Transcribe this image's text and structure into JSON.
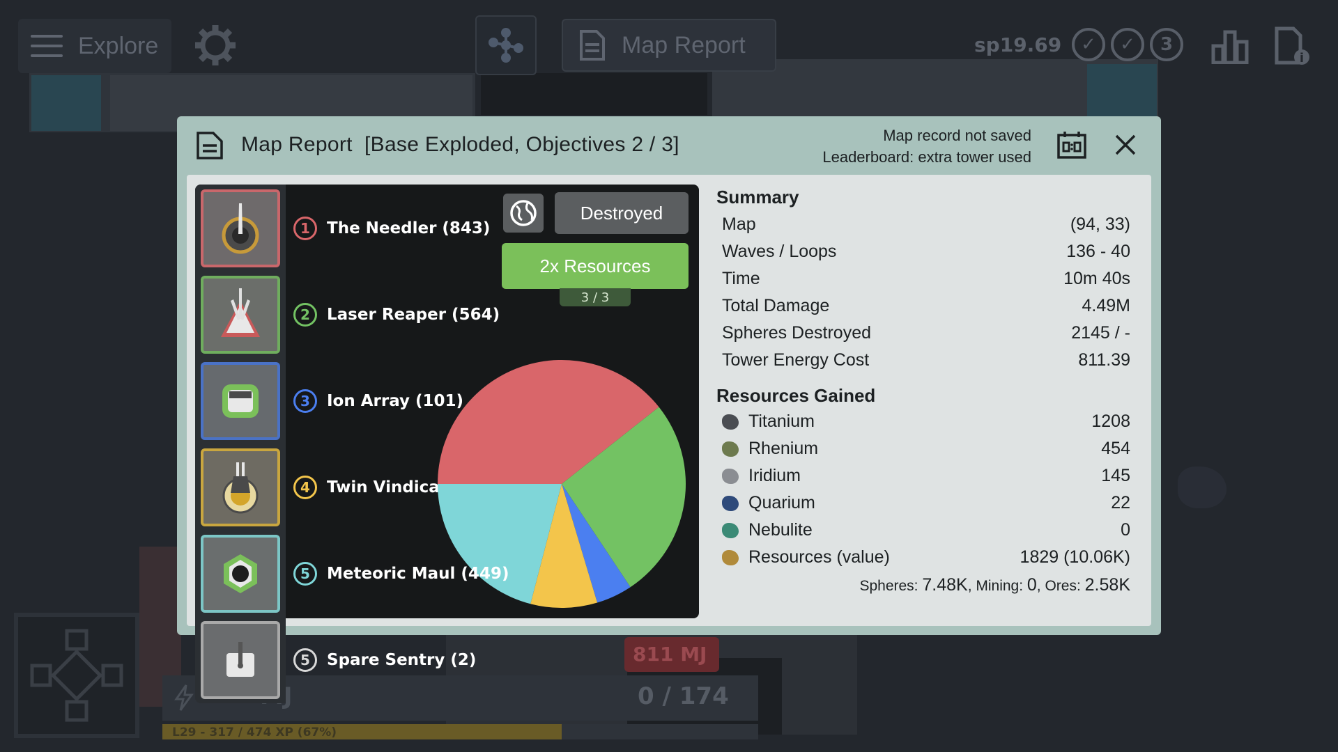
{
  "top_bar": {
    "explore_label": "Explore",
    "map_report_label": "Map Report",
    "sp_value": "sp19.69",
    "objective_badge": "3"
  },
  "hud": {
    "energy_count": "0 / 174",
    "energy_unit": "MJ",
    "power_badge": "811 MJ",
    "xp_label": "L29 - 317 / 474 XP (67%)",
    "xp_progress": 0.67
  },
  "modal": {
    "title": "Map Report  [Base Exploded, Objectives 2 / 3]",
    "status_line1": "Map record not saved",
    "status_line2": "Leaderboard: extra tower used",
    "destroyed_label": "Destroyed",
    "resources_button": "2x Resources",
    "resources_count": "3 / 3"
  },
  "towers": [
    {
      "rank": "1",
      "name": "The Needler (843)",
      "color": "#d9666a"
    },
    {
      "rank": "2",
      "name": "Laser Reaper (564)",
      "color": "#73c263"
    },
    {
      "rank": "3",
      "name": "Ion Array (101)",
      "color": "#4b7ff0"
    },
    {
      "rank": "4",
      "name": "Twin Vindicator (186)",
      "color": "#f3c54b"
    },
    {
      "rank": "5",
      "name": "Meteoric Maul (449)",
      "color": "#7fd6d8"
    },
    {
      "rank": "5",
      "name": "Spare Sentry (2)",
      "color": "#d9d9d9"
    }
  ],
  "chart_data": {
    "type": "pie",
    "slices": [
      {
        "label": "The Needler",
        "value": 843,
        "color": "#d9666a"
      },
      {
        "label": "Laser Reaper",
        "value": 564,
        "color": "#73c263"
      },
      {
        "label": "Ion Array",
        "value": 101,
        "color": "#4b7ff0"
      },
      {
        "label": "Twin Vindicator",
        "value": 186,
        "color": "#f3c54b"
      },
      {
        "label": "Meteoric Maul",
        "value": 449,
        "color": "#7fd6d8"
      }
    ]
  },
  "summary": {
    "title": "Summary",
    "rows": [
      {
        "label": "Map",
        "value": "(94, 33)"
      },
      {
        "label": "Waves / Loops",
        "value": "136 - 40"
      },
      {
        "label": "Time",
        "value": "10m 40s"
      },
      {
        "label": "Total Damage",
        "value": "4.49M"
      },
      {
        "label": "Spheres Destroyed",
        "value": "2145 / -"
      },
      {
        "label": "Tower Energy Cost",
        "value": "811.39"
      }
    ]
  },
  "resources": {
    "title": "Resources Gained",
    "rows": [
      {
        "label": "Titanium",
        "value": "1208",
        "color": "#4a4d52"
      },
      {
        "label": "Rhenium",
        "value": "454",
        "color": "#6d7a4e"
      },
      {
        "label": "Iridium",
        "value": "145",
        "color": "#8a8d92"
      },
      {
        "label": "Quarium",
        "value": "22",
        "color": "#2e4a7a"
      },
      {
        "label": "Nebulite",
        "value": "0",
        "color": "#3b8a76"
      },
      {
        "label": "Resources (value)",
        "value": "1829 (10.06K)",
        "color": "#b08a3a"
      }
    ],
    "footer": {
      "spheres_label": "Spheres: ",
      "spheres_value": "7.48K",
      "mining_label": ", Mining: ",
      "mining_value": "0",
      "ores_label": ", Ores: ",
      "ores_value": "2.58K"
    }
  }
}
